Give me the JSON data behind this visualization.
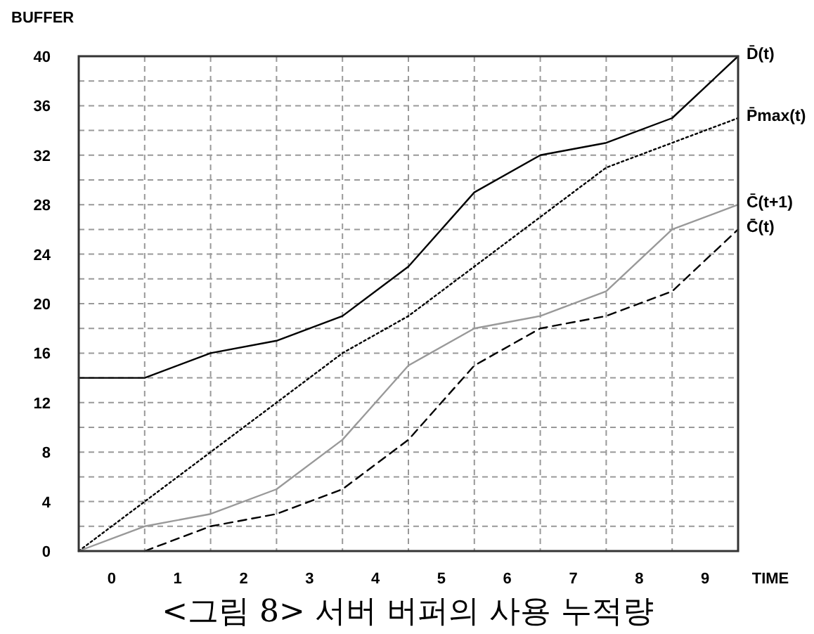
{
  "chart_data": {
    "type": "line",
    "xlabel": "TIME",
    "ylabel": "BUFFER",
    "annotations": [
      "<그림 8> 서버 버퍼의 사용 누적량"
    ],
    "x": [
      0,
      1,
      2,
      3,
      4,
      5,
      6,
      7,
      8,
      9,
      10
    ],
    "xlim": [
      0,
      10
    ],
    "xticks": [
      {
        "value": 0.5,
        "label": "0"
      },
      {
        "value": 1.5,
        "label": "1"
      },
      {
        "value": 2.5,
        "label": "2"
      },
      {
        "value": 3.5,
        "label": "3"
      },
      {
        "value": 4.5,
        "label": "4"
      },
      {
        "value": 5.5,
        "label": "5"
      },
      {
        "value": 6.5,
        "label": "6"
      },
      {
        "value": 7.5,
        "label": "7"
      },
      {
        "value": 8.5,
        "label": "8"
      },
      {
        "value": 9.5,
        "label": "9"
      },
      {
        "value": 1,
        "label": null
      },
      {
        "value": 2,
        "label": null
      },
      {
        "value": 3,
        "label": null
      },
      {
        "value": 4,
        "label": null
      },
      {
        "value": 5,
        "label": null
      },
      {
        "value": 6,
        "label": null
      },
      {
        "value": 7,
        "label": null
      },
      {
        "value": 8,
        "label": null
      },
      {
        "value": 9,
        "label": null
      }
    ],
    "ylim": [
      0,
      40
    ],
    "yticks": [
      0,
      {
        "value": 2,
        "label": null
      },
      4,
      {
        "value": 6,
        "label": null
      },
      8,
      {
        "value": 10,
        "label": null
      },
      12,
      {
        "value": 14,
        "label": null
      },
      16,
      {
        "value": 18,
        "label": null
      },
      20,
      {
        "value": 22,
        "label": null
      },
      24,
      {
        "value": 26,
        "label": null
      },
      28,
      {
        "value": 30,
        "label": null
      },
      32,
      {
        "value": 34,
        "label": null
      },
      36,
      {
        "value": 38,
        "label": null
      },
      40
    ],
    "grid": true,
    "series": [
      {
        "name": "D̄(t)",
        "color": "#000000",
        "line_style": "solid",
        "values": [
          14,
          14,
          16,
          17,
          19,
          23,
          29,
          32,
          33,
          35,
          40
        ]
      },
      {
        "name": "P̄max(t)",
        "color": "#000000",
        "line_style": "dotted",
        "values": [
          0,
          4,
          8,
          12,
          16,
          19,
          23,
          27,
          31,
          33,
          35
        ]
      },
      {
        "name": "C̄(t+1)",
        "color": "#999999",
        "line_style": "solid",
        "values": [
          0,
          2,
          3,
          5,
          9,
          15,
          18,
          19,
          21,
          26,
          28
        ]
      },
      {
        "name": "C̄(t)",
        "color": "#000000",
        "line_style": "dashed",
        "values": [
          null,
          0,
          2,
          3,
          5,
          9,
          15,
          18,
          19,
          21,
          26
        ]
      }
    ]
  }
}
